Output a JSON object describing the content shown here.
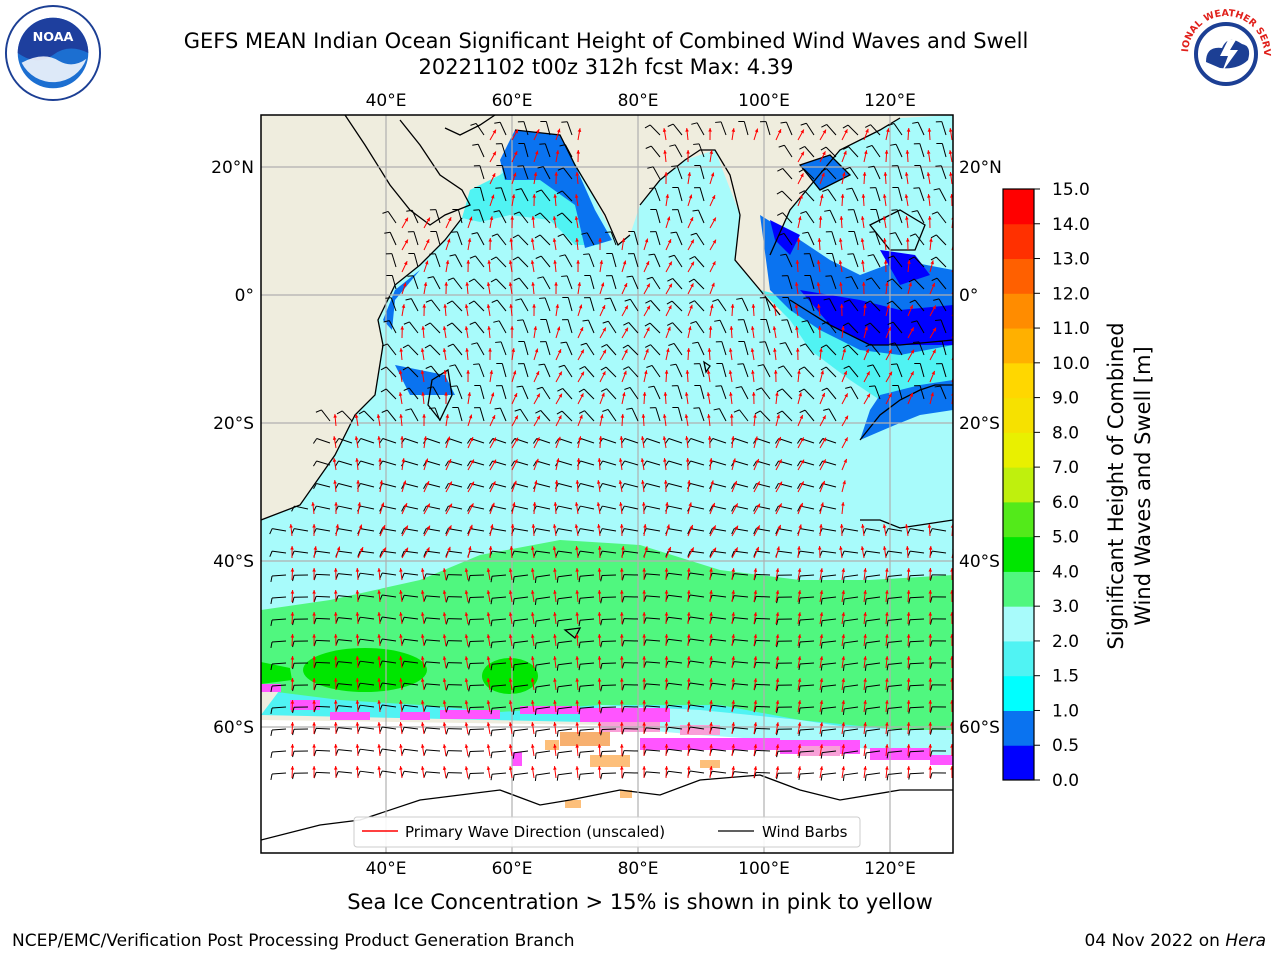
{
  "header": {
    "title_line1": "GEFS MEAN Indian Ocean Significant Height of Combined Wind Waves and Swell",
    "title_line2": "20221102 t00z 312h fcst   Max: 4.39"
  },
  "logos": {
    "left": {
      "name": "noaa-logo",
      "text": "NOAA"
    },
    "right": {
      "name": "nws-logo",
      "text": "NATIONAL WEATHER SERVICE"
    }
  },
  "map": {
    "lon_labels": [
      "40°E",
      "60°E",
      "80°E",
      "100°E",
      "120°E"
    ],
    "lat_labels": [
      "20°N",
      "0°",
      "20°S",
      "40°S",
      "60°S"
    ],
    "legend": {
      "wave_label": "Primary Wave Direction (unscaled)",
      "wind_label": "Wind Barbs",
      "wave_color": "#ff0000",
      "wind_color": "#000000"
    },
    "colors": {
      "land": "#efedde",
      "sea_ice_background": "#ffffff"
    }
  },
  "colorbar": {
    "label_line1": "Significant Height of Combined",
    "label_line2": "Wind Waves and Swell [m]",
    "ticks": [
      "0.0",
      "0.5",
      "1.0",
      "1.5",
      "2.0",
      "3.0",
      "4.0",
      "5.0",
      "6.0",
      "7.0",
      "8.0",
      "9.0",
      "10.0",
      "11.0",
      "12.0",
      "13.0",
      "14.0",
      "15.0"
    ],
    "colors": [
      "#0000ff",
      "#0a73f0",
      "#00ffff",
      "#50f3f3",
      "#a8fbfb",
      "#50f77f",
      "#00e600",
      "#53ea1a",
      "#bff00d",
      "#e9f000",
      "#f6e100",
      "#ffd700",
      "#ffb000",
      "#ff8c00",
      "#ff6000",
      "#ff3000",
      "#ff0000"
    ]
  },
  "caption": "Sea Ice Concentration > 15% is shown in pink to yellow",
  "footer": {
    "left": "NCEP/EMC/Verification Post Processing Product Generation Branch",
    "right_prefix": "04 Nov 2022 on ",
    "right_machine": "Hera"
  }
}
